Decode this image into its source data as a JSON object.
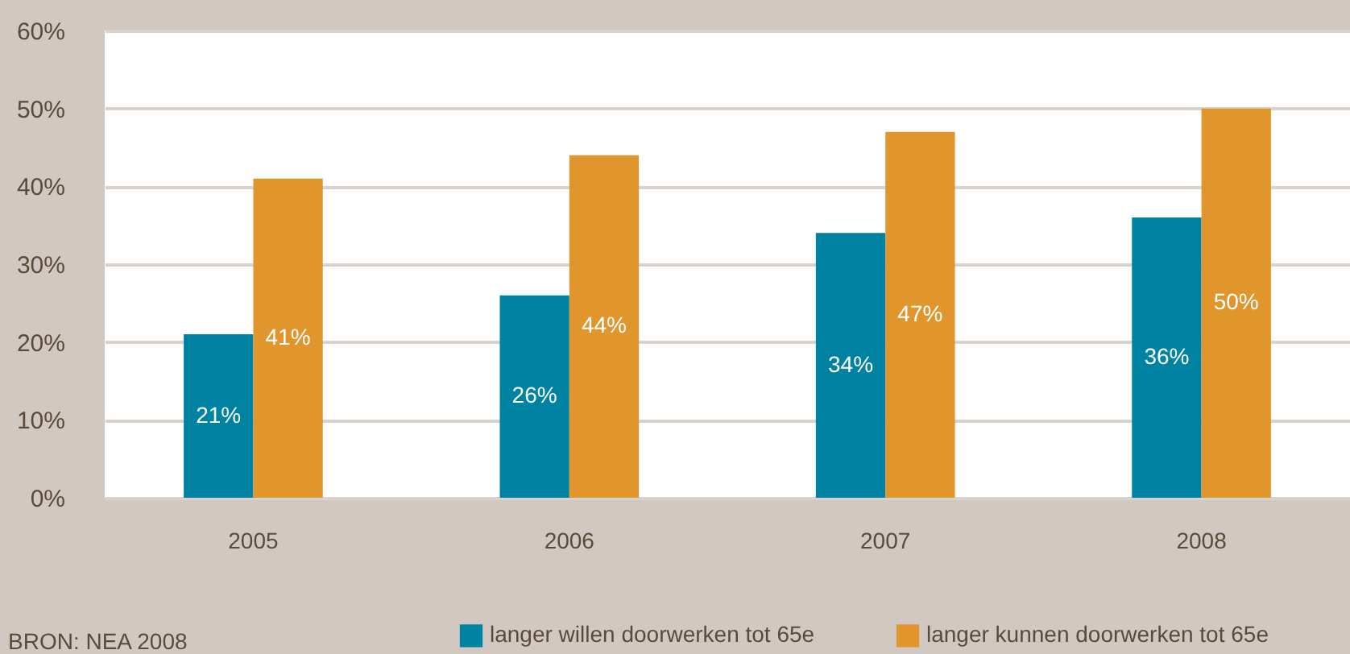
{
  "chart_data": {
    "type": "bar",
    "categories": [
      "2005",
      "2006",
      "2007",
      "2008"
    ],
    "series": [
      {
        "name": "langer willen doorwerken tot 65e",
        "color": "#0083a3",
        "values": [
          21,
          26,
          34,
          36
        ],
        "value_labels": [
          "21%",
          "26%",
          "34%",
          "36%"
        ]
      },
      {
        "name": "langer kunnen doorwerken tot 65e",
        "color": "#e0962d",
        "values": [
          41,
          44,
          47,
          50
        ],
        "value_labels": [
          "41%",
          "44%",
          "47%",
          "50%"
        ]
      }
    ],
    "ylim": [
      0,
      60
    ],
    "yticks": [
      {
        "value": 0,
        "label": "0%"
      },
      {
        "value": 10,
        "label": "10%"
      },
      {
        "value": 20,
        "label": "20%"
      },
      {
        "value": 30,
        "label": "30%"
      },
      {
        "value": 40,
        "label": "40%"
      },
      {
        "value": 50,
        "label": "50%"
      },
      {
        "value": 60,
        "label": "60%"
      }
    ],
    "grid": "y",
    "legend": "bottom",
    "annotations": [
      "BRON: NEA 2008"
    ]
  }
}
